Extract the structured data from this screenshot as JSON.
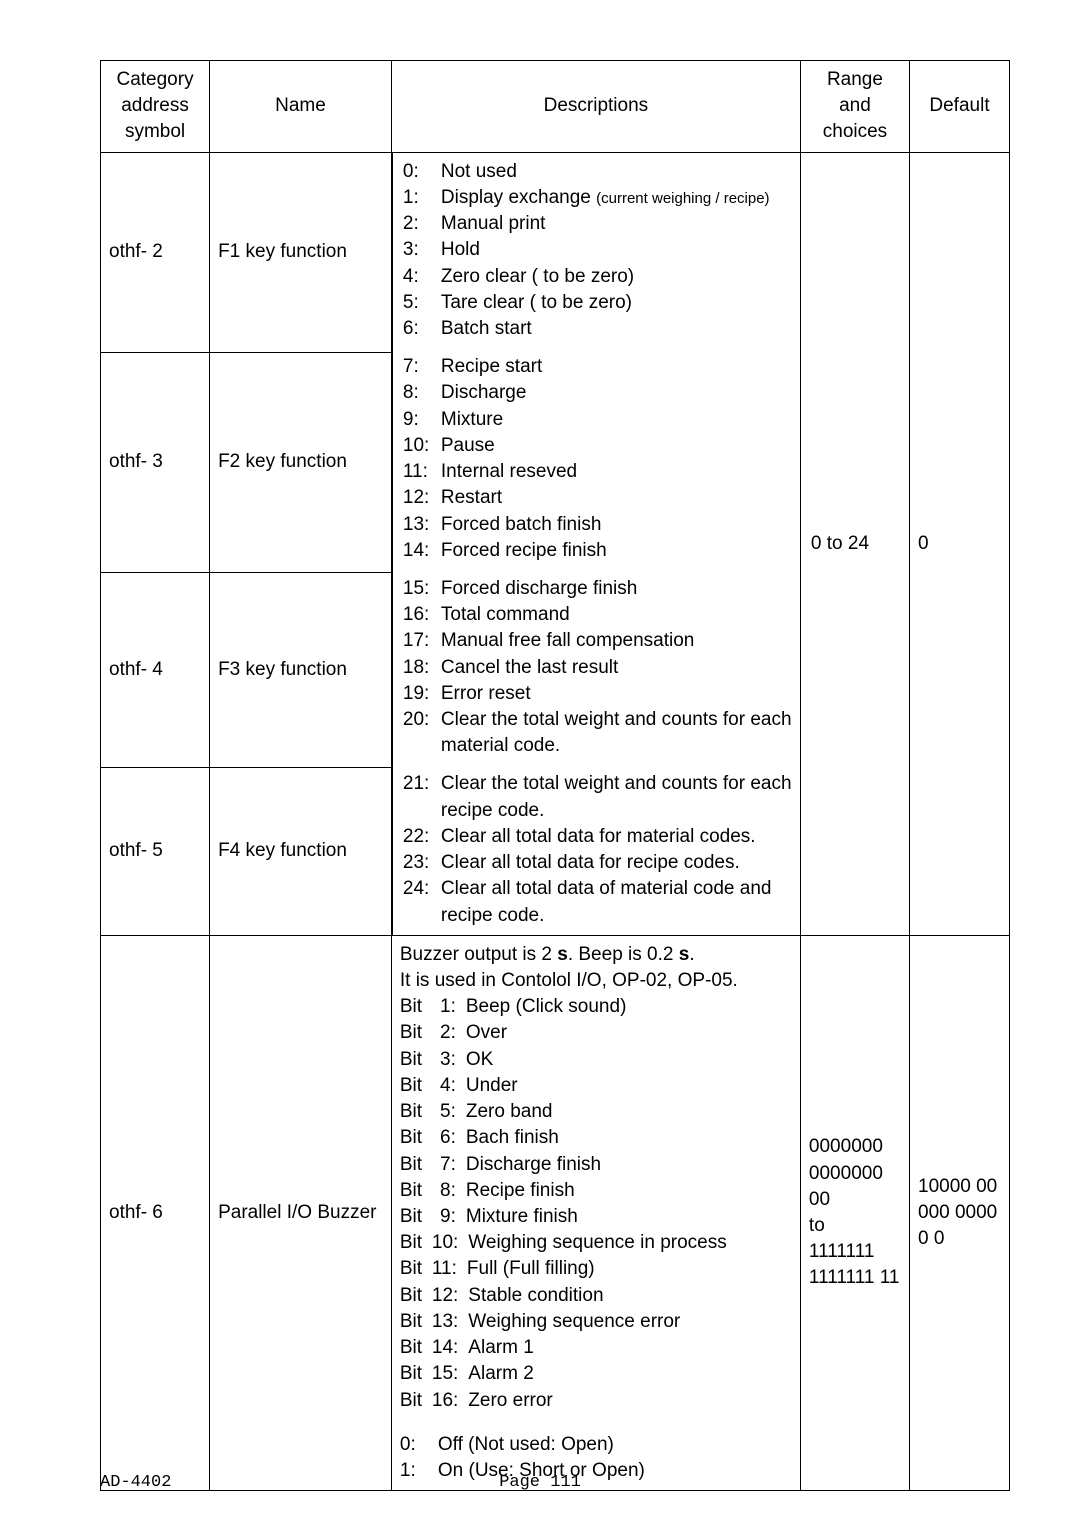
{
  "header": {
    "cat": "Category address symbol",
    "name": "Name",
    "desc": "Descriptions",
    "range": "Range and choices",
    "def": "Default"
  },
  "rows": [
    {
      "cat": "othf- 2",
      "name": "F1 key function"
    },
    {
      "cat": "othf- 3",
      "name": "F2 key function"
    },
    {
      "cat": "othf- 4",
      "name": "F3 key function"
    },
    {
      "cat": "othf- 5",
      "name": "F4 key function"
    },
    {
      "cat": "othf- 6",
      "name": "Parallel I/O Buzzer"
    }
  ],
  "fkeyRange": "0 to 24",
  "fkeyDefault": "0",
  "fkeyDesc": {
    "b1": [
      [
        "0:",
        "Not used"
      ],
      [
        "1:",
        "Display exchange"
      ],
      [
        "2:",
        "Manual print"
      ],
      [
        "3:",
        "Hold"
      ],
      [
        "4:",
        "Zero clear ( to be zero)"
      ],
      [
        "5:",
        "Tare clear ( to be zero)"
      ],
      [
        "6:",
        "Batch start"
      ]
    ],
    "b1_note": "(current weighing / recipe)",
    "b2": [
      [
        "7:",
        "Recipe start"
      ],
      [
        "8:",
        "Discharge"
      ],
      [
        "9:",
        "Mixture"
      ],
      [
        "10:",
        "Pause"
      ],
      [
        "11:",
        "Internal reseved"
      ],
      [
        "12:",
        "Restart"
      ],
      [
        "13:",
        "Forced batch finish"
      ],
      [
        "14:",
        "Forced recipe finish"
      ]
    ],
    "b3": [
      [
        "15:",
        "Forced discharge finish"
      ],
      [
        "16:",
        "Total command"
      ],
      [
        "17:",
        "Manual free fall compensation"
      ],
      [
        "18:",
        "Cancel the last result"
      ],
      [
        "19:",
        "Error reset"
      ],
      [
        "20:",
        "Clear the total weight and counts for each material code."
      ]
    ],
    "b4": [
      [
        "21:",
        "Clear the total weight and counts for each recipe code."
      ],
      [
        "22:",
        "Clear all total data for material codes."
      ],
      [
        "23:",
        "Clear all total data for recipe codes."
      ],
      [
        "24:",
        "Clear all total data of material code and recipe code."
      ]
    ]
  },
  "buzzer": {
    "intro1a": "Buzzer output is 2 ",
    "intro1b": ". Beep is 0.2 ",
    "intro1c": ".",
    "bold_s": "s",
    "intro2": "It is used in Contolol I/O, OP-02, OP-05.",
    "bits": [
      [
        "Bit",
        "1:",
        "Beep (Click sound)"
      ],
      [
        "Bit",
        "2:",
        "Over"
      ],
      [
        "Bit",
        "3:",
        "OK"
      ],
      [
        "Bit",
        "4:",
        "Under"
      ],
      [
        "Bit",
        "5:",
        "Zero band"
      ],
      [
        "Bit",
        "6:",
        "Bach finish"
      ],
      [
        "Bit",
        "7:",
        "Discharge finish"
      ],
      [
        "Bit",
        "8:",
        "Recipe finish"
      ],
      [
        "Bit",
        "9:",
        "Mixture finish"
      ],
      [
        "Bit",
        "10:",
        "Weighing sequence in process"
      ],
      [
        "Bit",
        "11:",
        "Full (Full filling)"
      ],
      [
        "Bit",
        "12:",
        "Stable condition"
      ],
      [
        "Bit",
        "13:",
        "Weighing sequence error"
      ],
      [
        "Bit",
        "14:",
        "Alarm 1"
      ],
      [
        "Bit",
        "15:",
        "Alarm 2"
      ],
      [
        "Bit",
        "16:",
        "Zero error"
      ]
    ],
    "opts": [
      [
        "0:",
        "Off (Not used: Open)"
      ],
      [
        "1:",
        "On (Use: Short or Open)"
      ]
    ],
    "range": "0000000 0000000 00\nto\n1111111 1111111 11",
    "default": "10000 00000 00000 0"
  },
  "footer": {
    "left": "AD-4402",
    "center": "Page 111"
  }
}
